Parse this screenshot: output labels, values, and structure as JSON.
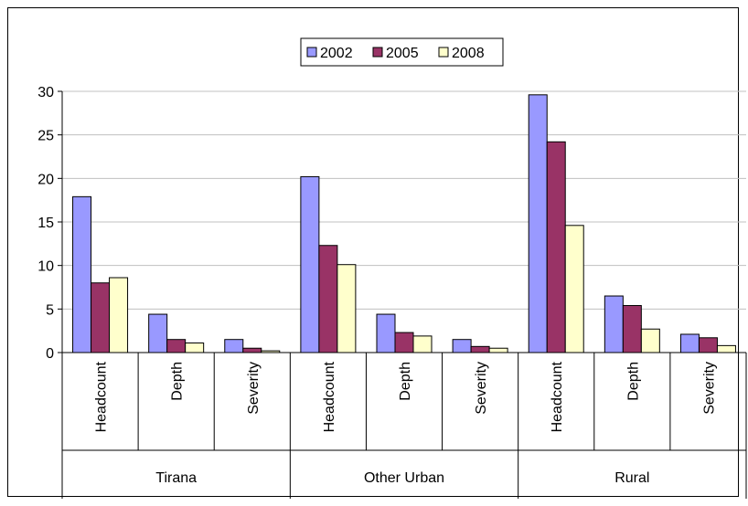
{
  "chart_data": {
    "type": "bar",
    "groups": [
      {
        "name": "Tirana",
        "categories": [
          "Headcount",
          "Depth",
          "Severity"
        ]
      },
      {
        "name": "Other Urban",
        "categories": [
          "Headcount",
          "Depth",
          "Severity"
        ]
      },
      {
        "name": "Rural",
        "categories": [
          "Headcount",
          "Depth",
          "Severity"
        ]
      }
    ],
    "series": [
      {
        "name": "2002",
        "color": "#9999ff",
        "values": [
          17.9,
          4.4,
          1.5,
          20.2,
          4.4,
          1.5,
          29.6,
          6.5,
          2.1
        ]
      },
      {
        "name": "2005",
        "color": "#993366",
        "values": [
          8.0,
          1.5,
          0.5,
          12.3,
          2.3,
          0.7,
          24.2,
          5.4,
          1.7
        ]
      },
      {
        "name": "2008",
        "color": "#ffffcc",
        "values": [
          8.6,
          1.1,
          0.2,
          10.1,
          1.9,
          0.5,
          14.6,
          2.7,
          0.8
        ]
      }
    ],
    "ylim": [
      0,
      30
    ],
    "yticks": [
      0,
      5,
      10,
      15,
      20,
      25,
      30
    ],
    "grid": true,
    "legend_position": "top-center"
  }
}
